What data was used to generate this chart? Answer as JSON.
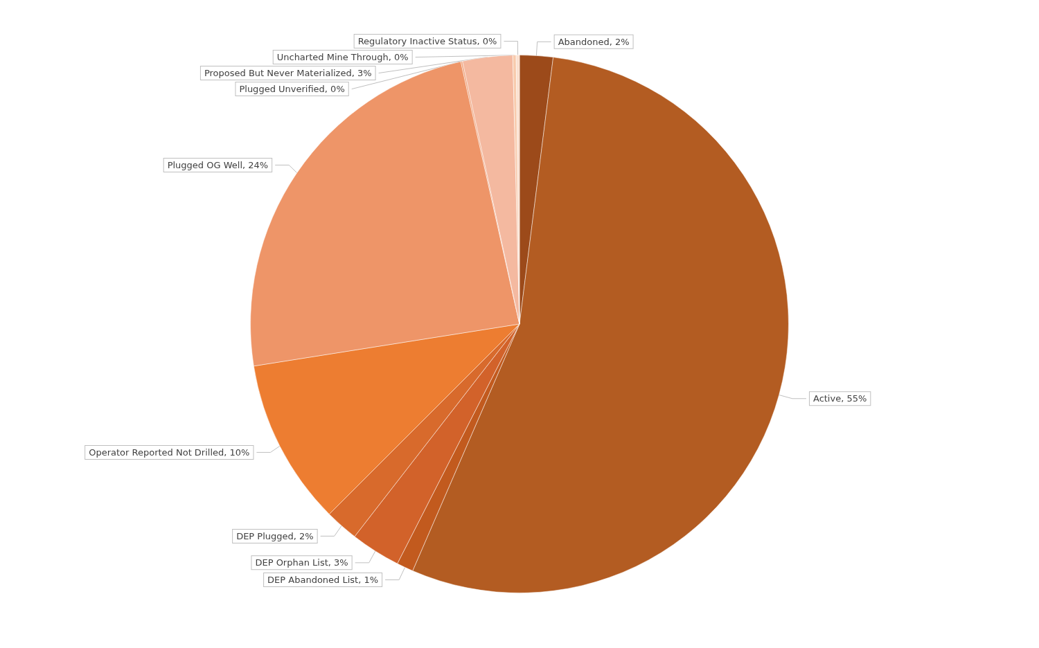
{
  "chart_data": {
    "type": "pie",
    "categories": [
      "Abandoned",
      "Active",
      "DEP Abandoned List",
      "DEP Orphan List",
      "DEP Plugged",
      "Operator Reported Not Drilled",
      "Plugged OG Well",
      "Plugged Unverified",
      "Proposed But Never Materialized",
      "Uncharted Mine Through",
      "Regulatory Inactive Status"
    ],
    "values": [
      2,
      54.5,
      1,
      3,
      2,
      10,
      24,
      0.1,
      3,
      0.2,
      0.2
    ],
    "colors": [
      "#9c4a1a",
      "#b35c22",
      "#c25a1e",
      "#d2622a",
      "#d86a2c",
      "#ed7d31",
      "#ee9568",
      "#f0a57f",
      "#f4b9a0",
      "#f8cbad",
      "#fbe0cf"
    ],
    "value_labels": [
      "2%",
      "55%",
      "1%",
      "3%",
      "2%",
      "10%",
      "24%",
      "0%",
      "3%",
      "0%",
      "0%"
    ],
    "legend": false
  }
}
